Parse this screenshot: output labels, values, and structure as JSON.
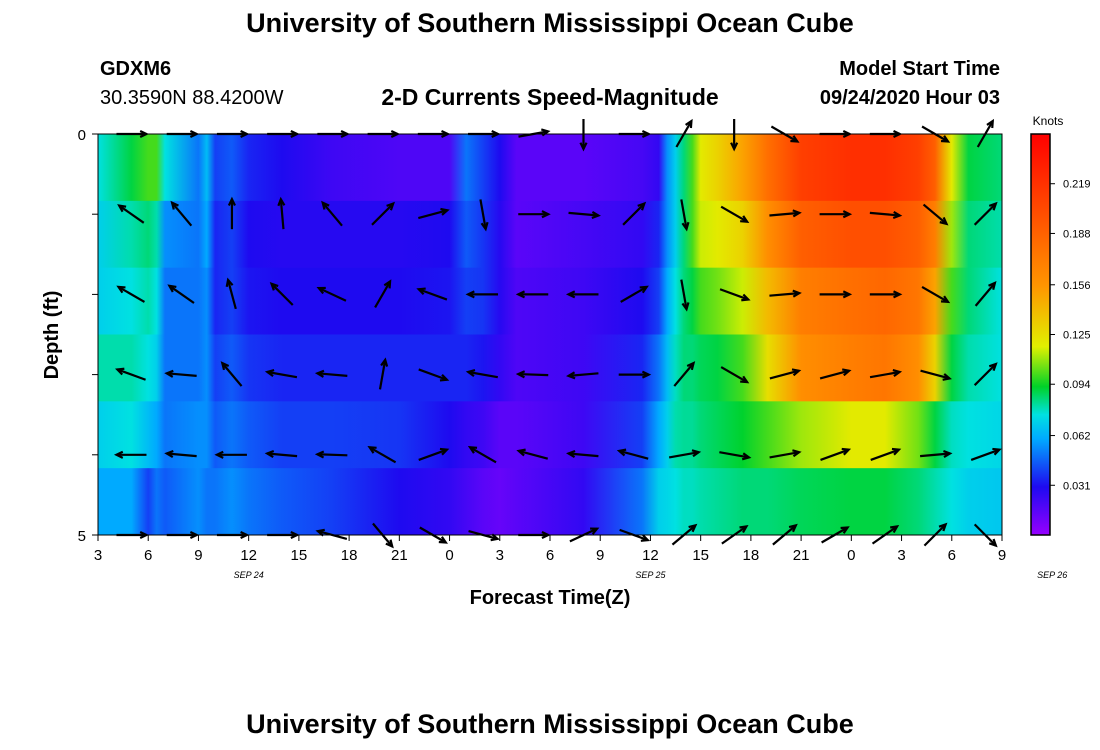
{
  "page": {
    "title_top": "University of Southern Mississippi Ocean Cube",
    "title_bottom": "University of Southern Mississippi Ocean Cube",
    "station_id": "GDXM6",
    "station_coords": "30.3590N 88.4200W",
    "model_start_label": "Model Start Time",
    "model_start_value": "09/24/2020 Hour 03"
  },
  "chart_data": {
    "type": "heatmap",
    "title": "2-D Currents Speed-Magnitude",
    "xlabel": "Forecast Time(Z)",
    "ylabel": "Depth (ft)",
    "ylim": [
      0,
      5
    ],
    "y_tick_labels": [
      "0",
      "5"
    ],
    "x_tick_labels": [
      "3",
      "6",
      "9",
      "12",
      "15",
      "18",
      "21",
      "0",
      "3",
      "6",
      "9",
      "12",
      "15",
      "18",
      "21",
      "0",
      "3",
      "6",
      "9"
    ],
    "date_labels": [
      {
        "label": "SEP 24",
        "hours": 12
      },
      {
        "label": "SEP 25",
        "hours": 36
      },
      {
        "label": "SEP 26",
        "hours": 60
      }
    ],
    "hours_range": [
      3,
      57
    ],
    "colorbar": {
      "unit": "Knots",
      "vmin": 0.0,
      "vmax": 0.25,
      "ticks": [
        "0.031",
        "0.062",
        "0.094",
        "0.125",
        "0.156",
        "0.188",
        "0.219"
      ],
      "tick_values": [
        0.031,
        0.062,
        0.094,
        0.125,
        0.156,
        0.188,
        0.219
      ]
    },
    "layer_rows": 6,
    "keyframes_hours": [
      3,
      5,
      6,
      6.5,
      7,
      9,
      9.5,
      10,
      11,
      12,
      14,
      17,
      21,
      24,
      25,
      26,
      27,
      28,
      32,
      35.5,
      36.5,
      37,
      37.5,
      38,
      38.5,
      39,
      40,
      41.5,
      43,
      45,
      48,
      50,
      52,
      53,
      54,
      55,
      57
    ],
    "speed_knots": [
      [
        0.075,
        0.09,
        0.1,
        0.1,
        0.075,
        0.05,
        0.065,
        0.04,
        0.045,
        0.035,
        0.03,
        0.022,
        0.018,
        0.018,
        0.05,
        0.04,
        0.03,
        0.015,
        0.015,
        0.02,
        0.025,
        0.055,
        0.07,
        0.085,
        0.1,
        0.12,
        0.13,
        0.15,
        0.18,
        0.21,
        0.22,
        0.22,
        0.21,
        0.19,
        0.12,
        0.09,
        0.085
      ],
      [
        0.07,
        0.08,
        0.085,
        0.08,
        0.055,
        0.05,
        0.06,
        0.035,
        0.04,
        0.03,
        0.028,
        0.028,
        0.028,
        0.03,
        0.045,
        0.038,
        0.028,
        0.015,
        0.02,
        0.025,
        0.035,
        0.055,
        0.07,
        0.085,
        0.1,
        0.115,
        0.12,
        0.13,
        0.16,
        0.19,
        0.2,
        0.2,
        0.19,
        0.17,
        0.11,
        0.085,
        0.08
      ],
      [
        0.07,
        0.075,
        0.08,
        0.075,
        0.05,
        0.05,
        0.055,
        0.035,
        0.04,
        0.032,
        0.03,
        0.03,
        0.03,
        0.032,
        0.04,
        0.038,
        0.028,
        0.018,
        0.022,
        0.03,
        0.04,
        0.06,
        0.075,
        0.085,
        0.09,
        0.1,
        0.105,
        0.115,
        0.14,
        0.17,
        0.18,
        0.185,
        0.175,
        0.15,
        0.1,
        0.085,
        0.075
      ],
      [
        0.08,
        0.08,
        0.075,
        0.07,
        0.05,
        0.05,
        0.055,
        0.04,
        0.045,
        0.038,
        0.035,
        0.035,
        0.035,
        0.035,
        0.035,
        0.032,
        0.025,
        0.018,
        0.022,
        0.035,
        0.05,
        0.065,
        0.078,
        0.085,
        0.085,
        0.088,
        0.09,
        0.1,
        0.125,
        0.16,
        0.17,
        0.175,
        0.16,
        0.13,
        0.09,
        0.08,
        0.075
      ],
      [
        0.07,
        0.075,
        0.065,
        0.06,
        0.05,
        0.055,
        0.055,
        0.045,
        0.05,
        0.045,
        0.04,
        0.04,
        0.038,
        0.03,
        0.025,
        0.022,
        0.015,
        0.015,
        0.022,
        0.04,
        0.06,
        0.07,
        0.08,
        0.082,
        0.082,
        0.085,
        0.088,
        0.092,
        0.1,
        0.11,
        0.12,
        0.12,
        0.105,
        0.09,
        0.078,
        0.075,
        0.072
      ],
      [
        0.06,
        0.06,
        0.04,
        0.05,
        0.045,
        0.055,
        0.05,
        0.05,
        0.055,
        0.05,
        0.045,
        0.04,
        0.03,
        0.025,
        0.02,
        0.015,
        0.012,
        0.015,
        0.025,
        0.05,
        0.07,
        0.072,
        0.075,
        0.078,
        0.078,
        0.08,
        0.082,
        0.085,
        0.085,
        0.088,
        0.09,
        0.09,
        0.085,
        0.08,
        0.075,
        0.07,
        0.068
      ]
    ],
    "vector_columns_hours": [
      5,
      8,
      11,
      14,
      17,
      20,
      23,
      26,
      29,
      32,
      35,
      38,
      41,
      44,
      47,
      50,
      53,
      56
    ],
    "vector_rows_fraction": [
      0.0,
      0.2,
      0.4,
      0.6,
      0.8,
      1.0
    ],
    "vectors_deg_ccw_from_east": [
      [
        0,
        0,
        0,
        0,
        0,
        0,
        0,
        0,
        10,
        -90,
        0,
        60,
        -90,
        -30,
        0,
        0,
        -30,
        60
      ],
      [
        145,
        130,
        90,
        95,
        130,
        45,
        15,
        -80,
        0,
        -5,
        45,
        -80,
        -30,
        5,
        0,
        -5,
        -40,
        45
      ],
      [
        150,
        145,
        105,
        135,
        155,
        60,
        160,
        180,
        180,
        180,
        30,
        -80,
        -20,
        5,
        0,
        0,
        -30,
        50
      ],
      [
        160,
        175,
        130,
        170,
        175,
        80,
        -20,
        170,
        178,
        185,
        0,
        50,
        -30,
        15,
        15,
        10,
        -15,
        45
      ],
      [
        180,
        175,
        180,
        175,
        178,
        150,
        20,
        150,
        165,
        175,
        165,
        10,
        -10,
        10,
        20,
        20,
        5,
        20
      ],
      [
        0,
        0,
        0,
        0,
        165,
        -50,
        -30,
        -15,
        0,
        25,
        -20,
        40,
        35,
        40,
        30,
        35,
        45,
        -45
      ]
    ]
  }
}
